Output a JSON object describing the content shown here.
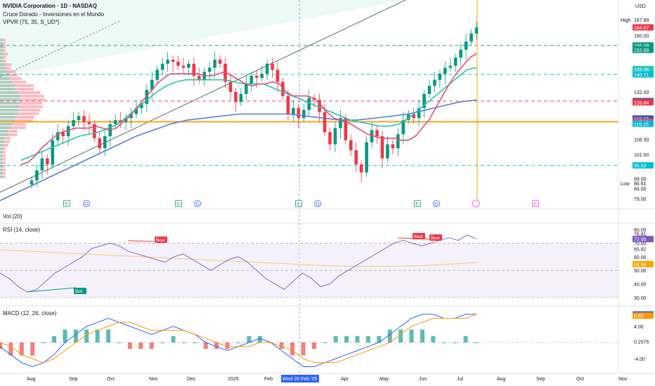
{
  "header": {
    "symbol": "NVIDIA Corporation · 1D · NASDAQ",
    "indicator_1": "Cruce Dorado - Inversiones en el Mundo",
    "indicator_2": "VPVR (75, 35, S_UD*)",
    "currency": "USD",
    "high_label": "High",
    "low_label": "Low"
  },
  "panes": {
    "vol_label": "Vol (20)",
    "rsi_label": "RSI (14, close)",
    "macd_label": "MACD (12, 26, close)"
  },
  "colors": {
    "red": "#f23645",
    "green": "#089981",
    "ma_fast": "#e64e75",
    "ma_mid": "#26c6b0",
    "ma_slow": "#5b7fd6",
    "rsi": "#7e57c2",
    "macd": "#2962ff",
    "signal": "#ff9800",
    "amber": "#f7a600"
  },
  "chart_data": {
    "type": "line",
    "title": "NVIDIA Corporation · 1D · NASDAQ",
    "x_axis": {
      "ticks": [
        "Aug",
        "Sep",
        "Oct",
        "Nov",
        "Dec",
        "2025",
        "Feb",
        "Wed 26 Feb '25",
        "Apr",
        "May",
        "Jun",
        "Jul",
        "Aug",
        "Sep",
        "Oct",
        "Nov"
      ],
      "crosshair_label": "Wed 26 Feb '25"
    },
    "price_pane": {
      "y_ticks": [
        160.0,
        132.0,
        108.5,
        101.0,
        89.0,
        84.0,
        79.0
      ],
      "high": 167.89,
      "low": 86.61,
      "close": [
        88,
        93,
        99,
        96,
        108,
        112,
        110,
        115,
        118,
        120,
        117,
        116,
        109,
        104,
        110,
        116,
        118,
        117,
        119,
        121,
        124,
        126,
        133,
        138,
        143,
        146,
        148,
        147,
        145,
        144,
        146,
        140,
        138,
        142,
        144,
        148,
        146,
        137,
        132,
        127,
        131,
        136,
        140,
        139,
        141,
        146,
        143,
        137,
        130,
        121,
        124,
        119,
        123,
        129,
        128,
        122,
        112,
        106,
        114,
        119,
        108,
        103,
        96,
        92,
        107,
        113,
        110,
        99,
        106,
        104,
        111,
        118,
        121,
        119,
        124,
        131,
        135,
        138,
        141,
        144,
        145,
        149,
        153,
        157,
        161,
        164
      ],
      "ma_fast": [
        96,
        97,
        100,
        104,
        107,
        110,
        112,
        113,
        114,
        114,
        114,
        115,
        114,
        113,
        114,
        117,
        120,
        124,
        128,
        132,
        136,
        139,
        141,
        141,
        141,
        141,
        141,
        140,
        140,
        141,
        142,
        140,
        138,
        136,
        135,
        136,
        136,
        137,
        136,
        132,
        130,
        130,
        130,
        129,
        126,
        122,
        119,
        118,
        117,
        115,
        113,
        111,
        110,
        109,
        109,
        109,
        108,
        108,
        110,
        114,
        118,
        124,
        130,
        136,
        141,
        145,
        149,
        151
      ],
      "ma_mid": [
        98,
        100,
        102,
        104,
        106,
        108,
        110,
        111,
        112,
        114,
        116,
        120,
        124,
        128,
        132,
        135,
        137,
        138,
        138,
        138,
        138,
        138,
        137,
        136,
        136,
        136,
        134,
        132,
        130,
        128,
        126,
        124,
        122,
        120,
        118,
        117,
        116,
        115,
        115,
        116,
        119,
        123,
        127,
        131,
        135,
        139,
        143,
        144
      ],
      "ma_slow": [
        78,
        82,
        86,
        90,
        94,
        98,
        102,
        106,
        110,
        113,
        116,
        118,
        119,
        120,
        121,
        121,
        121,
        121,
        120,
        119,
        118,
        118,
        119,
        120,
        121,
        123,
        125,
        127,
        128
      ]
    },
    "horizontal_levels": [
      {
        "value": 155.08,
        "style": "dashed",
        "color": "#089981"
      },
      {
        "value": 140.71,
        "style": "dashed",
        "color": "#00bcd4"
      },
      {
        "value": 127.44,
        "style": "dashed",
        "color": "#f23645"
      },
      {
        "value": 117.15,
        "style": "solid",
        "color": "#ff9800"
      },
      {
        "value": 95.53,
        "style": "dashed",
        "color": "#00bcd4"
      }
    ],
    "price_tags": [
      {
        "value": "167.89",
        "color": "none"
      },
      {
        "value": "164.07",
        "color": "#f23645"
      },
      {
        "value": "155.08",
        "color": "#089981"
      },
      {
        "value": "152.89",
        "color": "#089981"
      },
      {
        "value": "143.36",
        "color": "#26c6b0"
      },
      {
        "value": "140.71",
        "color": "#00bcd4"
      },
      {
        "value": "127.44",
        "color": "#3f51b5"
      },
      {
        "value": "126.84",
        "color": "#f23645"
      },
      {
        "value": "118.77",
        "color": "#3f51b5"
      },
      {
        "value": "117.15",
        "color": "#e64e75"
      },
      {
        "value": "116.15",
        "color": "#00bcd4"
      },
      {
        "value": "95.53",
        "color": "#00bcd4"
      },
      {
        "value": "86.61",
        "color": "none"
      }
    ],
    "events": [
      "E",
      "D",
      "E",
      "D",
      "E",
      "D",
      "E",
      "D",
      "E"
    ],
    "rsi_pane": {
      "y_ticks": [
        80.0,
        70.0,
        60.0,
        50.0,
        40.0,
        30.0
      ],
      "tags": [
        "76.81",
        "72.95",
        "65.82",
        "54.56"
      ],
      "labels": [
        "Bear",
        "Bear",
        "Bear",
        "Bull"
      ],
      "values": [
        48,
        44,
        38,
        34,
        36,
        42,
        48,
        52,
        56,
        60,
        66,
        68,
        70,
        68,
        64,
        62,
        60,
        58,
        56,
        60,
        62,
        58,
        54,
        50,
        54,
        58,
        60,
        56,
        50,
        44,
        40,
        36,
        42,
        48,
        44,
        38,
        40,
        46,
        50,
        54,
        58,
        62,
        66,
        70,
        72,
        70,
        68,
        70,
        72,
        74,
        72,
        76,
        73
      ]
    },
    "macd_pane": {
      "y_ticks": [
        4.0,
        -4.0
      ],
      "tags": [
        "6.95",
        "6.66",
        "0.2975"
      ],
      "macd": [
        -1,
        -3,
        -5,
        -6,
        -5,
        -3,
        0,
        2,
        4,
        5,
        6,
        5,
        4,
        3,
        2,
        3,
        4,
        3,
        2,
        0,
        -1,
        -2,
        -1,
        0,
        1,
        0,
        -2,
        -4,
        -6,
        -6,
        -5,
        -4,
        -3,
        -2,
        -1,
        0,
        2,
        4,
        6,
        7,
        7,
        6,
        6,
        7,
        7
      ],
      "signal": [
        0,
        -1,
        -3,
        -4,
        -5,
        -4,
        -2,
        0,
        2,
        3,
        4,
        5,
        5,
        4,
        3,
        3,
        3,
        3,
        2,
        1,
        0,
        -1,
        -1,
        -1,
        0,
        0,
        -1,
        -2,
        -4,
        -5,
        -5,
        -5,
        -4,
        -3,
        -2,
        -1,
        0,
        2,
        4,
        5,
        6,
        6,
        6,
        6,
        7
      ]
    }
  }
}
